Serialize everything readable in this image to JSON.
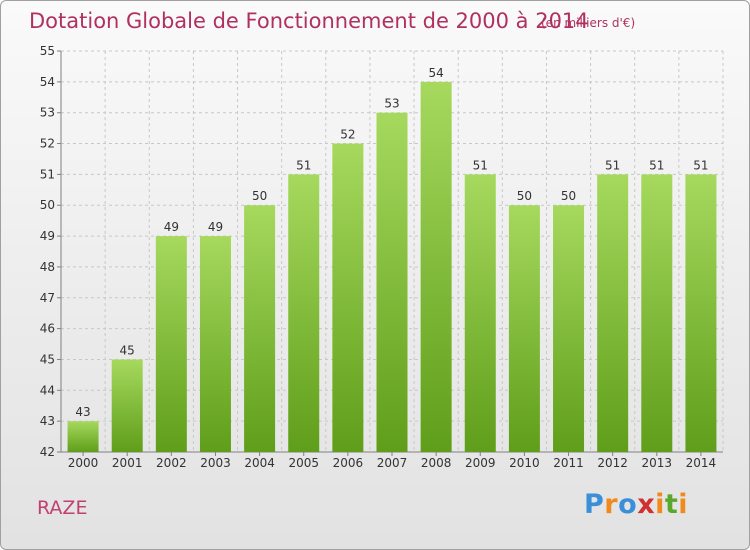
{
  "title": "Dotation Globale de Fonctionnement de 2000 à 2014",
  "unit_note": "(en milliers d'€)",
  "commune": "RAZE",
  "logo": {
    "letters": [
      "P",
      "r",
      "o",
      "x",
      "i",
      "t",
      "i"
    ],
    "colors": [
      "#3a8fd8",
      "#f08a1c",
      "#3a8fd8",
      "#d03030",
      "#f08a1c",
      "#5aa82a",
      "#f08a1c"
    ]
  },
  "colors": {
    "title": "#b03060",
    "bar_top": "#a6d95e",
    "bar_bottom": "#5f9e1a",
    "grid": "#c8c8c8",
    "axis": "#808080"
  },
  "chart_data": {
    "type": "bar",
    "categories": [
      "2000",
      "2001",
      "2002",
      "2003",
      "2004",
      "2005",
      "2006",
      "2007",
      "2008",
      "2009",
      "2010",
      "2011",
      "2012",
      "2013",
      "2014"
    ],
    "values": [
      43,
      45,
      49,
      49,
      50,
      51,
      52,
      53,
      54,
      51,
      50,
      50,
      51,
      51,
      51
    ],
    "ylim": [
      42,
      55
    ],
    "yticks": [
      42,
      43,
      44,
      45,
      46,
      47,
      48,
      49,
      50,
      51,
      52,
      53,
      54,
      55
    ],
    "grid": true,
    "data_labels": true
  }
}
